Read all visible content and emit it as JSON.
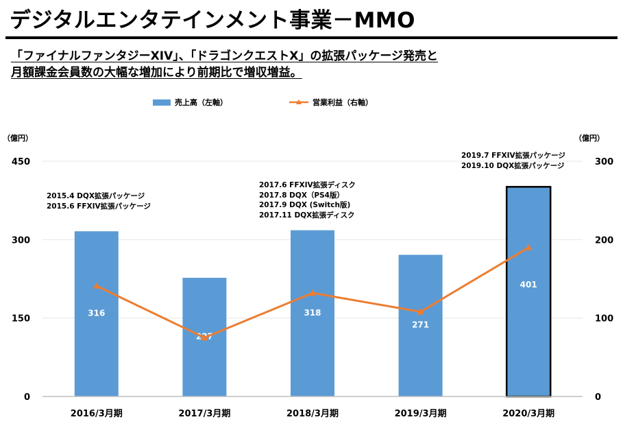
{
  "header": {
    "title": "デジタルエンタテインメント事業－MMO",
    "subtitle_line1": "「ファイナルファンタジーXIV」、「ドラゴンクエストX」の拡張パッケージ発売と",
    "subtitle_line2": "月額課金会員数の大幅な増加により前期比で増収増益。"
  },
  "colors": {
    "bar": "#5b9bd5",
    "line": "#ed7d31",
    "highlight_border": "#000000"
  },
  "chart_data": {
    "type": "bar",
    "categories": [
      "2016/3月期",
      "2017/3月期",
      "2018/3月期",
      "2019/3月期",
      "2020/3月期"
    ],
    "series": [
      {
        "name": "売上高（左軸）",
        "type": "bar",
        "axis": "left",
        "values": [
          316,
          227,
          318,
          271,
          401
        ]
      },
      {
        "name": "営業利益（右軸）",
        "type": "line",
        "axis": "right",
        "values": [
          141,
          75,
          132,
          108,
          190
        ]
      }
    ],
    "left_axis": {
      "unit": "（億円）",
      "ylim": [
        0,
        450
      ],
      "ticks": [
        0,
        150,
        300,
        450
      ]
    },
    "right_axis": {
      "unit": "（億円）",
      "ylim": [
        0,
        300
      ],
      "ticks": [
        0,
        100,
        200,
        300
      ]
    },
    "highlight_index": 4,
    "legend": [
      "売上高（左軸）",
      "営業利益（右軸）"
    ],
    "annotations": [
      {
        "category": "2016/3月期",
        "lines": [
          "2015.4 DQX拡張パッケージ",
          "2015.6 FFXIV拡張パッケージ"
        ]
      },
      {
        "category": "2018/3月期",
        "lines": [
          "2017.6 FFXIV拡張ディスク",
          "2017.8 DQX（PS4版）",
          "2017.9 DQX (Switch版)",
          "2017.11 DQX拡張ディスク"
        ]
      },
      {
        "category": "2020/3月期",
        "lines": [
          "2019.7 FFXIV拡張パッケージ",
          "2019.10 DQX拡張パッケージ"
        ]
      }
    ]
  }
}
